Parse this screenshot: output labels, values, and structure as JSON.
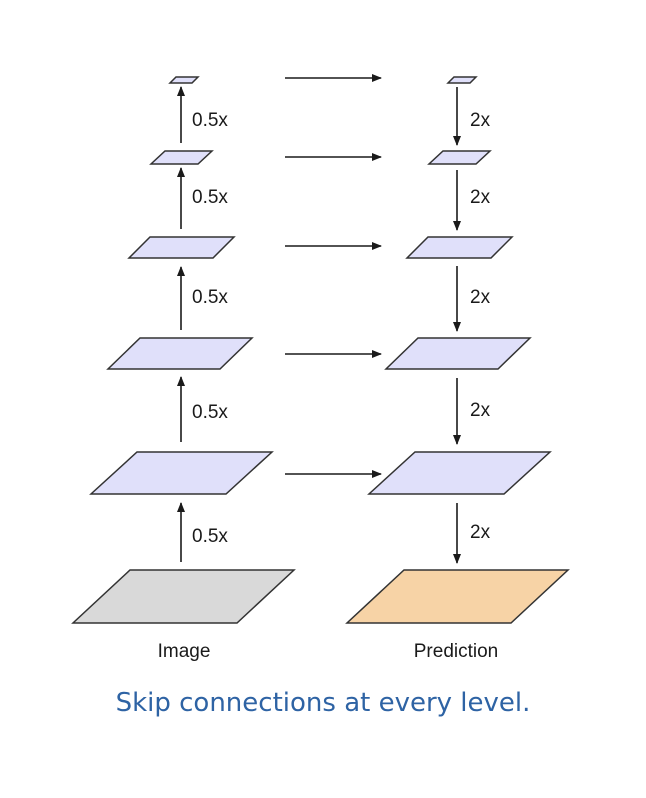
{
  "colors": {
    "image_fill": "#d9d9d9",
    "feature_fill": "#e0e0fa",
    "prediction_fill": "#f7d3a6",
    "stroke": "#333333",
    "caption": "#2e63a4"
  },
  "encoder": {
    "input_label": "Image",
    "step_labels": [
      "0.5x",
      "0.5x",
      "0.5x",
      "0.5x",
      "0.5x"
    ]
  },
  "decoder": {
    "output_label": "Prediction",
    "step_labels": [
      "2x",
      "2x",
      "2x",
      "2x",
      "2x"
    ]
  },
  "caption": "Skip connections at every level."
}
